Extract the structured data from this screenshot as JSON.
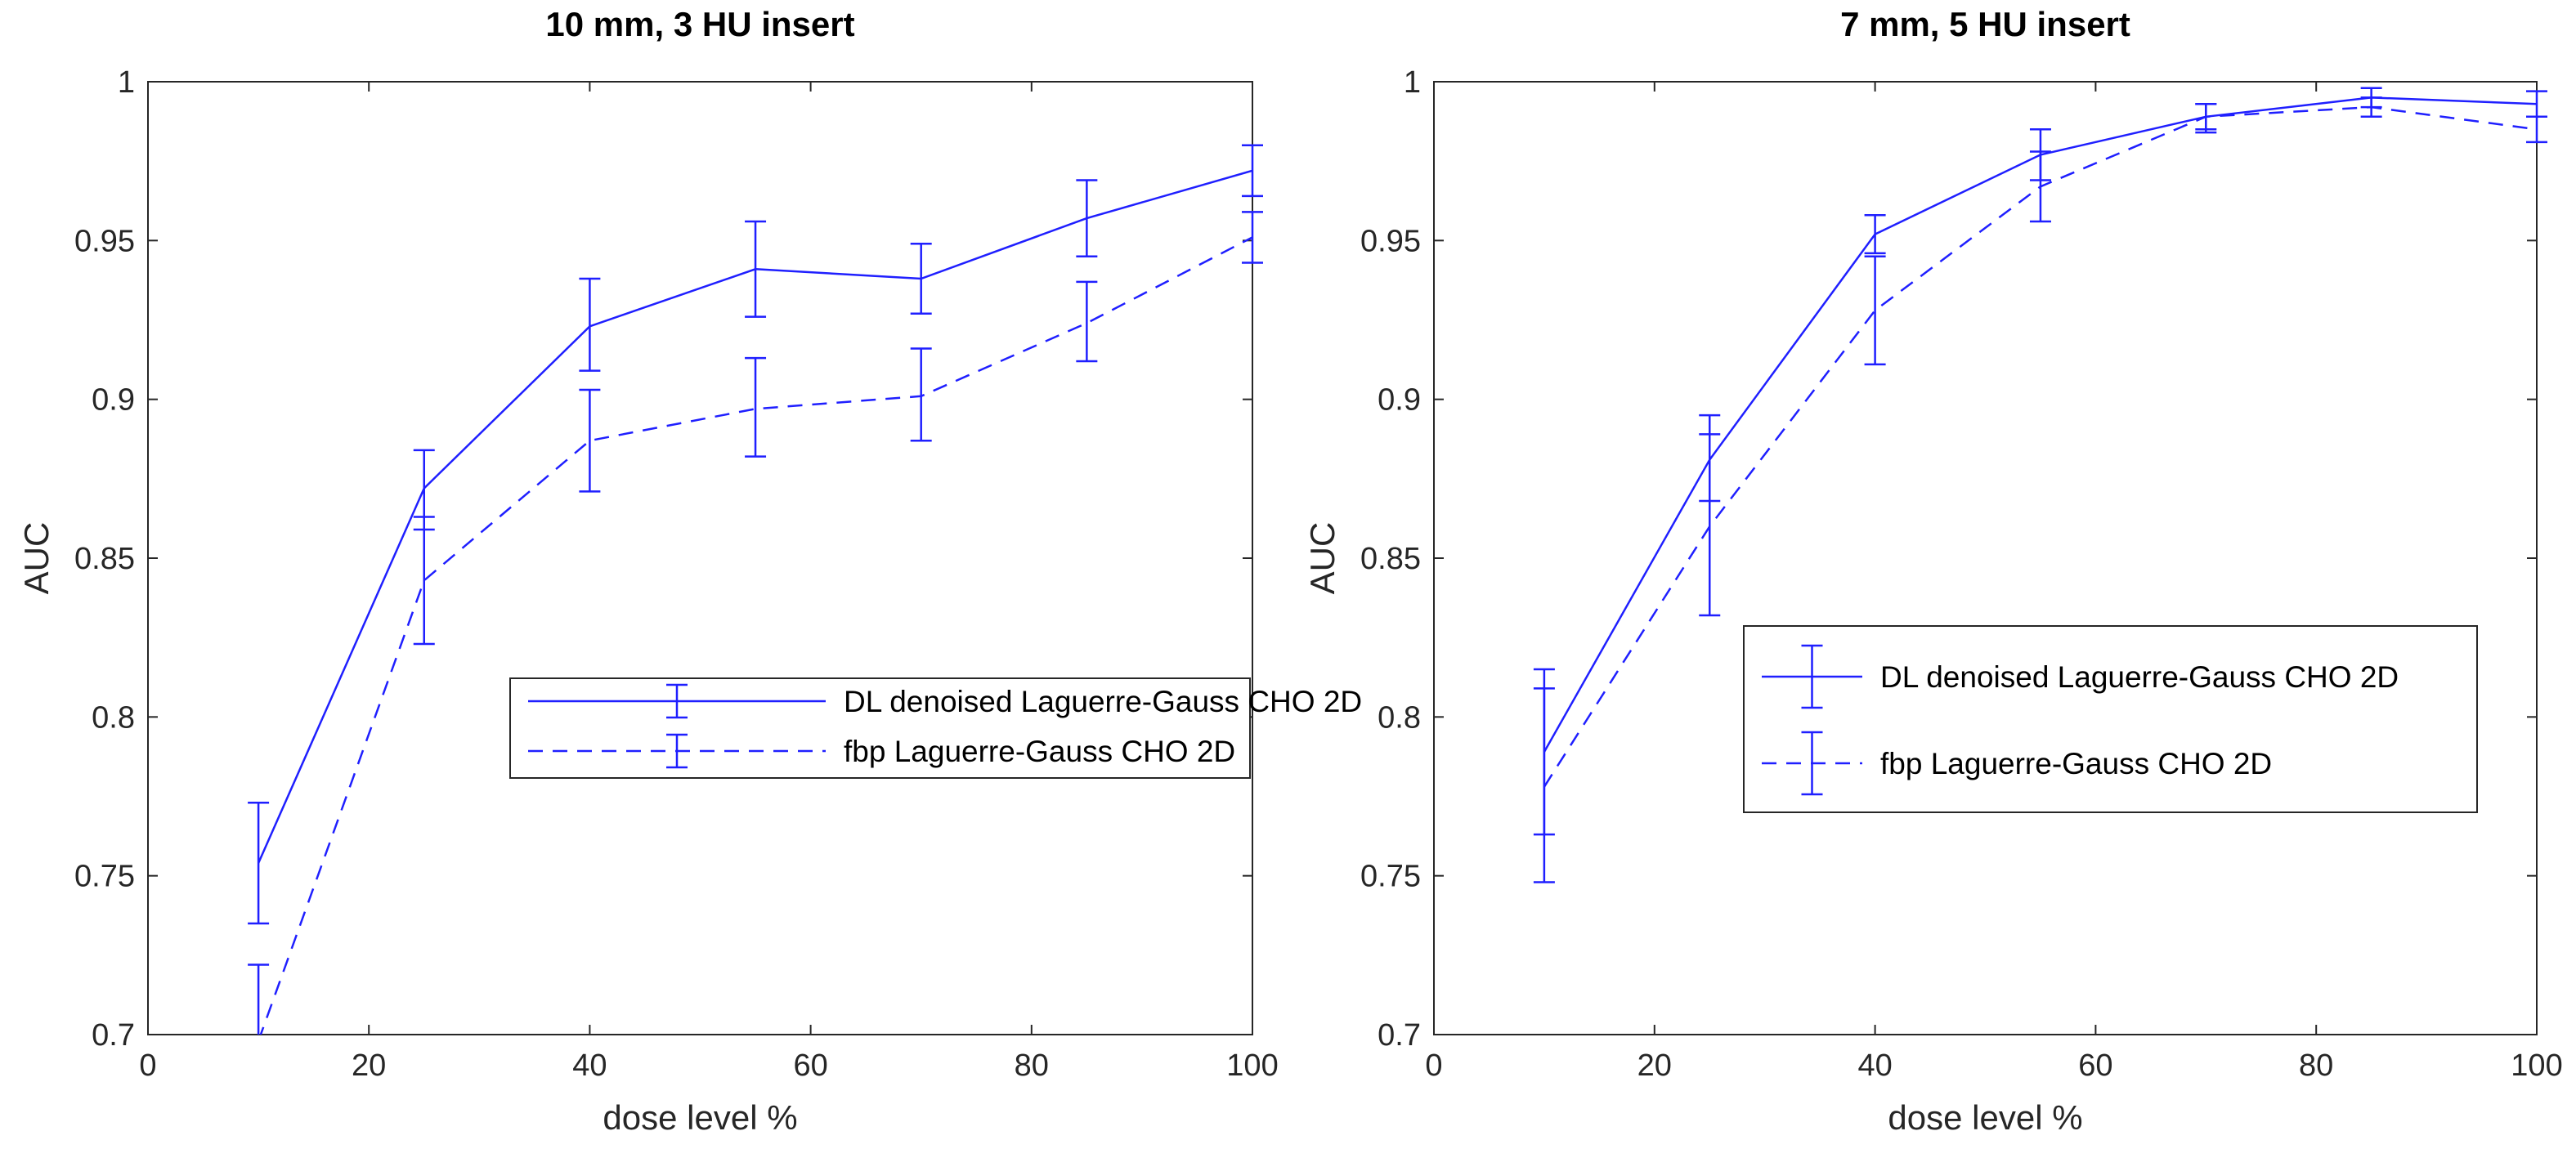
{
  "chart_data": [
    {
      "type": "line",
      "title": "10 mm, 3 HU insert",
      "xlabel": "dose level %",
      "ylabel": "AUC",
      "xlim": [
        0,
        100
      ],
      "ylim": [
        0.7,
        1
      ],
      "xticks": [
        "0",
        "20",
        "40",
        "60",
        "80",
        "100"
      ],
      "yticks": [
        "0.7",
        "0.75",
        "0.8",
        "0.85",
        "0.9",
        "0.95",
        "1"
      ],
      "grid": false,
      "legend_position": "center-right",
      "x": [
        10,
        25,
        40,
        55,
        70,
        85,
        100
      ],
      "series": [
        {
          "name": "DL denoised Laguerre-Gauss CHO 2D",
          "line_style": "solid",
          "values": [
            0.754,
            0.872,
            0.923,
            0.941,
            0.938,
            0.957,
            0.972
          ],
          "err_lower": [
            0.735,
            0.859,
            0.909,
            0.926,
            0.927,
            0.945,
            0.964
          ],
          "err_upper": [
            0.773,
            0.884,
            0.938,
            0.956,
            0.949,
            0.969,
            0.98
          ]
        },
        {
          "name": "fbp Laguerre-Gauss CHO 2D",
          "line_style": "dashed",
          "values": [
            0.698,
            0.843,
            0.887,
            0.897,
            0.901,
            0.924,
            0.951
          ],
          "err_lower": [
            0.674,
            0.823,
            0.871,
            0.882,
            0.887,
            0.912,
            0.943
          ],
          "err_upper": [
            0.722,
            0.863,
            0.903,
            0.913,
            0.916,
            0.937,
            0.959
          ]
        }
      ],
      "color": "#1f1fff"
    },
    {
      "type": "line",
      "title": "7 mm, 5 HU insert",
      "xlabel": "dose level %",
      "ylabel": "AUC",
      "xlim": [
        0,
        100
      ],
      "ylim": [
        0.7,
        1
      ],
      "xticks": [
        "0",
        "20",
        "40",
        "60",
        "80",
        "100"
      ],
      "yticks": [
        "0.7",
        "0.75",
        "0.8",
        "0.85",
        "0.9",
        "0.95",
        "1"
      ],
      "grid": false,
      "legend_position": "center-right",
      "x": [
        10,
        25,
        40,
        55,
        70,
        85,
        100
      ],
      "series": [
        {
          "name": "DL denoised Laguerre-Gauss CHO 2D",
          "line_style": "solid",
          "values": [
            0.789,
            0.881,
            0.952,
            0.977,
            0.989,
            0.995,
            0.993
          ],
          "err_lower": [
            0.763,
            0.868,
            0.946,
            0.969,
            0.985,
            0.992,
            0.989
          ],
          "err_upper": [
            0.815,
            0.895,
            0.958,
            0.985,
            0.993,
            0.998,
            0.997
          ]
        },
        {
          "name": "fbp Laguerre-Gauss CHO 2D",
          "line_style": "dashed",
          "values": [
            0.778,
            0.86,
            0.928,
            0.967,
            0.989,
            0.992,
            0.985
          ],
          "err_lower": [
            0.748,
            0.832,
            0.911,
            0.956,
            0.984,
            0.989,
            0.981
          ],
          "err_upper": [
            0.809,
            0.889,
            0.945,
            0.978,
            0.993,
            0.995,
            0.989
          ]
        }
      ],
      "color": "#1f1fff"
    }
  ]
}
